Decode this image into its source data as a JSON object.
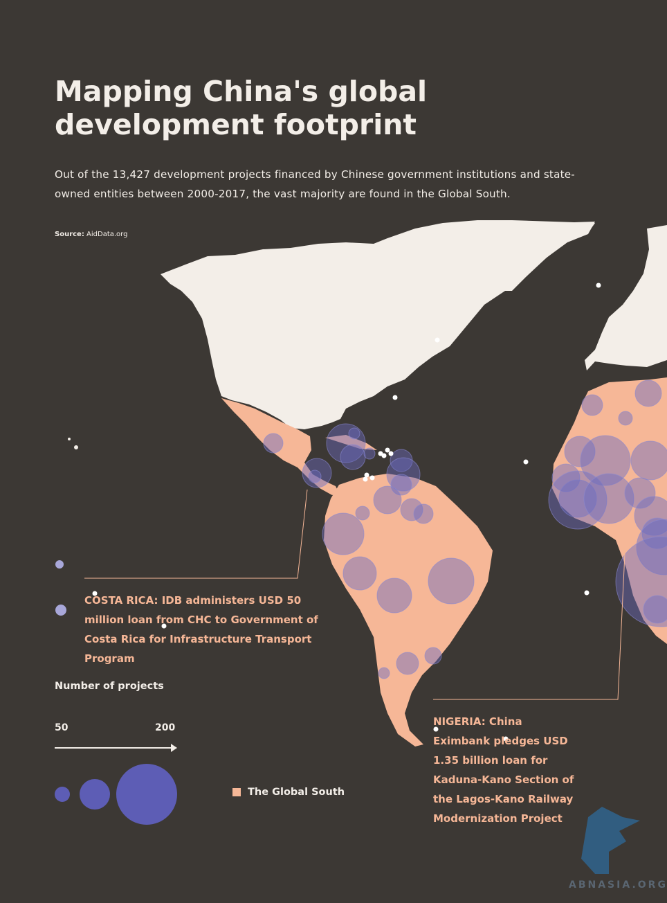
{
  "header": {
    "title": "Mapping China's global development footprint",
    "subtitle": "Out of the 13,427 development projects financed by Chinese government institutions and state-owned entities between 2000-2017, the vast majority are found in the Global South.",
    "source_label": "Source:",
    "source_value": "AidData.org"
  },
  "annotations": {
    "costa_rica": "COSTA RICA: IDB administers USD 50 million loan from CHC to Government of Costa Rica for Infrastructure Transport Program",
    "nigeria": "NIGERIA: China Eximbank pledges USD 1.35 billion loan for Kaduna-Kano Section of the Lagos-Kano Railway Modernization Project"
  },
  "legend": {
    "size_title": "Number of projects",
    "size_min": "50",
    "size_max": "200",
    "global_south_label": "The Global South"
  },
  "colors": {
    "background": "#3c3834",
    "land_north": "#f3eee8",
    "global_south": "#f6b797",
    "bubble": "#6b6bbf",
    "text": "#f3eee8"
  },
  "watermark": "ABNASIA.ORG"
}
